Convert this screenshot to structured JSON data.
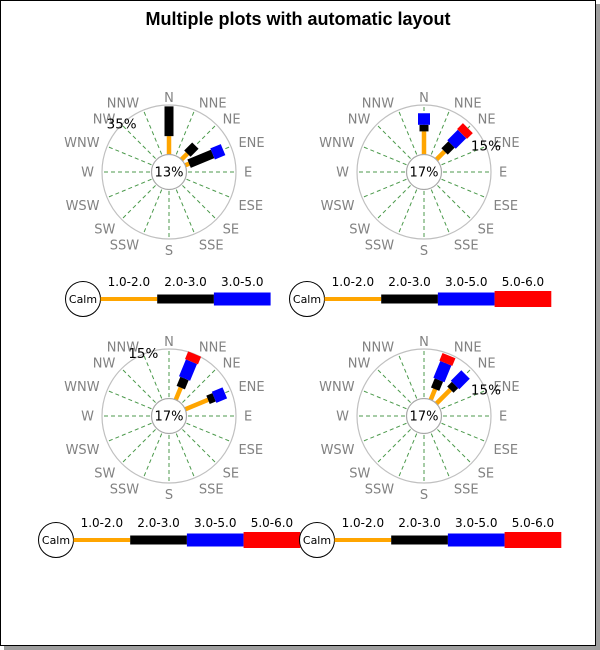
{
  "title": "Multiple plots with automatic layout",
  "compass": [
    "N",
    "NNE",
    "NE",
    "ENE",
    "E",
    "ESE",
    "SE",
    "SSE",
    "S",
    "SSW",
    "SW",
    "WSW",
    "W",
    "WNW",
    "NW",
    "NNW"
  ],
  "calm_label": "Calm",
  "bins": [
    {
      "label": "1.0-2.0",
      "color": "#FFA500"
    },
    {
      "label": "2.0-3.0",
      "color": "#000000"
    },
    {
      "label": "3.0-5.0",
      "color": "#0000FF"
    },
    {
      "label": "5.0-6.0",
      "color": "#FF0000"
    }
  ],
  "style": {
    "spoke_color": "#4C9A4C",
    "outer_ring_color": "#C0C0C0",
    "inner_ring_color": "#A8A8A8",
    "compass_label_color": "#828282",
    "text_color": "#000000",
    "legend_circle_border": "#000000",
    "border_color": "#000000",
    "shadow_color": "#9E9E9E",
    "background": "#FFFFFF"
  },
  "chart_data": [
    {
      "type": "bar",
      "subtype": "windrose-polar",
      "position": "top-left",
      "center_label": "13%",
      "calm_pct": 13,
      "scale_label": "35%",
      "scale_label_direction": "NW",
      "scale_max": 35,
      "unit": "%",
      "series": [
        {
          "direction": "N",
          "bins": [
            {
              "range": "1.0-2.0",
              "pct": 13
            },
            {
              "range": "2.0-3.0",
              "pct": 21
            }
          ]
        },
        {
          "direction": "NE",
          "bins": [
            {
              "range": "1.0-2.0",
              "pct": 6
            },
            {
              "range": "2.0-3.0",
              "pct": 8
            }
          ]
        },
        {
          "direction": "ENE",
          "bins": [
            {
              "range": "1.0-2.0",
              "pct": 3
            },
            {
              "range": "2.0-3.0",
              "pct": 18
            },
            {
              "range": "3.0-5.0",
              "pct": 8
            }
          ]
        }
      ],
      "legend": {
        "calm_label": "Calm",
        "items": [
          "1.0-2.0",
          "2.0-3.0",
          "3.0-5.0"
        ]
      }
    },
    {
      "type": "bar",
      "subtype": "windrose-polar",
      "position": "top-right",
      "center_label": "17%",
      "calm_pct": 17,
      "scale_label": "15%",
      "scale_label_direction": "ENE",
      "scale_max": 15,
      "unit": "%",
      "series": [
        {
          "direction": "N",
          "bins": [
            {
              "range": "1.0-2.0",
              "pct": 7
            },
            {
              "range": "2.0-3.0",
              "pct": 2
            },
            {
              "range": "3.0-5.0",
              "pct": 3.5
            }
          ]
        },
        {
          "direction": "NE",
          "bins": [
            {
              "range": "1.0-2.0",
              "pct": 3.5
            },
            {
              "range": "2.0-3.0",
              "pct": 3
            },
            {
              "range": "3.0-5.0",
              "pct": 4.5
            },
            {
              "range": "5.0-6.0",
              "pct": 2.5
            }
          ]
        }
      ],
      "legend": {
        "calm_label": "Calm",
        "items": [
          "1.0-2.0",
          "2.0-3.0",
          "3.0-5.0",
          "5.0-6.0"
        ]
      }
    },
    {
      "type": "bar",
      "subtype": "windrose-polar",
      "position": "bottom-left",
      "center_label": "17%",
      "calm_pct": 17,
      "scale_label": "15%",
      "scale_label_direction": "NNW",
      "scale_max": 15,
      "unit": "%",
      "series": [
        {
          "direction": "NNE",
          "bins": [
            {
              "range": "1.0-2.0",
              "pct": 4
            },
            {
              "range": "2.0-3.0",
              "pct": 3
            },
            {
              "range": "3.0-5.0",
              "pct": 5.5
            },
            {
              "range": "5.0-6.0",
              "pct": 2.5
            }
          ]
        },
        {
          "direction": "ENE",
          "bins": [
            {
              "range": "1.0-2.0",
              "pct": 7.5
            },
            {
              "range": "2.0-3.0",
              "pct": 2
            },
            {
              "range": "3.0-5.0",
              "pct": 3.5
            }
          ]
        }
      ],
      "legend": {
        "calm_label": "Calm",
        "items": [
          "1.0-2.0",
          "2.0-3.0",
          "3.0-5.0",
          "5.0-6.0"
        ]
      }
    },
    {
      "type": "bar",
      "subtype": "windrose-polar",
      "position": "bottom-right",
      "center_label": "17%",
      "calm_pct": 17,
      "scale_label": "15%",
      "scale_label_direction": "ENE",
      "scale_max": 15,
      "unit": "%",
      "series": [
        {
          "direction": "NNE",
          "bins": [
            {
              "range": "1.0-2.0",
              "pct": 3.5
            },
            {
              "range": "2.0-3.0",
              "pct": 3
            },
            {
              "range": "3.0-5.0",
              "pct": 5.5
            },
            {
              "range": "5.0-6.0",
              "pct": 2.5
            }
          ]
        },
        {
          "direction": "NE",
          "bins": [
            {
              "range": "1.0-2.0",
              "pct": 6
            },
            {
              "range": "2.0-3.0",
              "pct": 2
            },
            {
              "range": "3.0-5.0",
              "pct": 4.5
            }
          ]
        }
      ],
      "legend": {
        "calm_label": "Calm",
        "items": [
          "1.0-2.0",
          "2.0-3.0",
          "3.0-5.0",
          "5.0-6.0"
        ]
      }
    }
  ]
}
